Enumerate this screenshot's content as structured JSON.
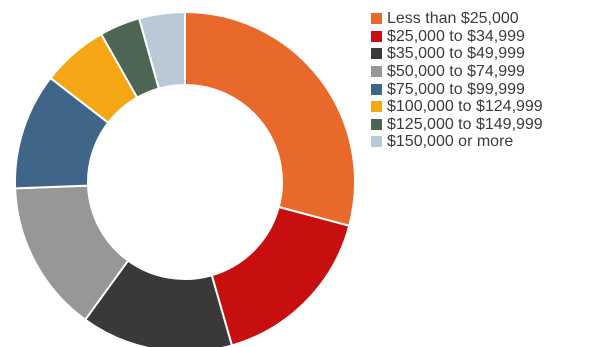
{
  "chart_data": {
    "type": "pie",
    "variant": "donut",
    "categories": [
      "Less than $25,000",
      "$25,000 to $34,999",
      "$35,000 to $49,999",
      "$50,000 to $74,999",
      "$75,000 to $99,999",
      "$100,000 to $124,999",
      "$125,000 to $149,999",
      "$150,000 or more"
    ],
    "values": [
      29.5,
      16.6,
      14.6,
      14.6,
      11.2,
      6.4,
      3.9,
      4.4
    ],
    "colors": [
      "#e8692a",
      "#c80f0f",
      "#3a3839",
      "#979797",
      "#3f6688",
      "#f4a615",
      "#4d6654",
      "#b9c9d6"
    ],
    "legend_position": "right",
    "start_angle_deg": 0,
    "direction": "clockwise"
  }
}
